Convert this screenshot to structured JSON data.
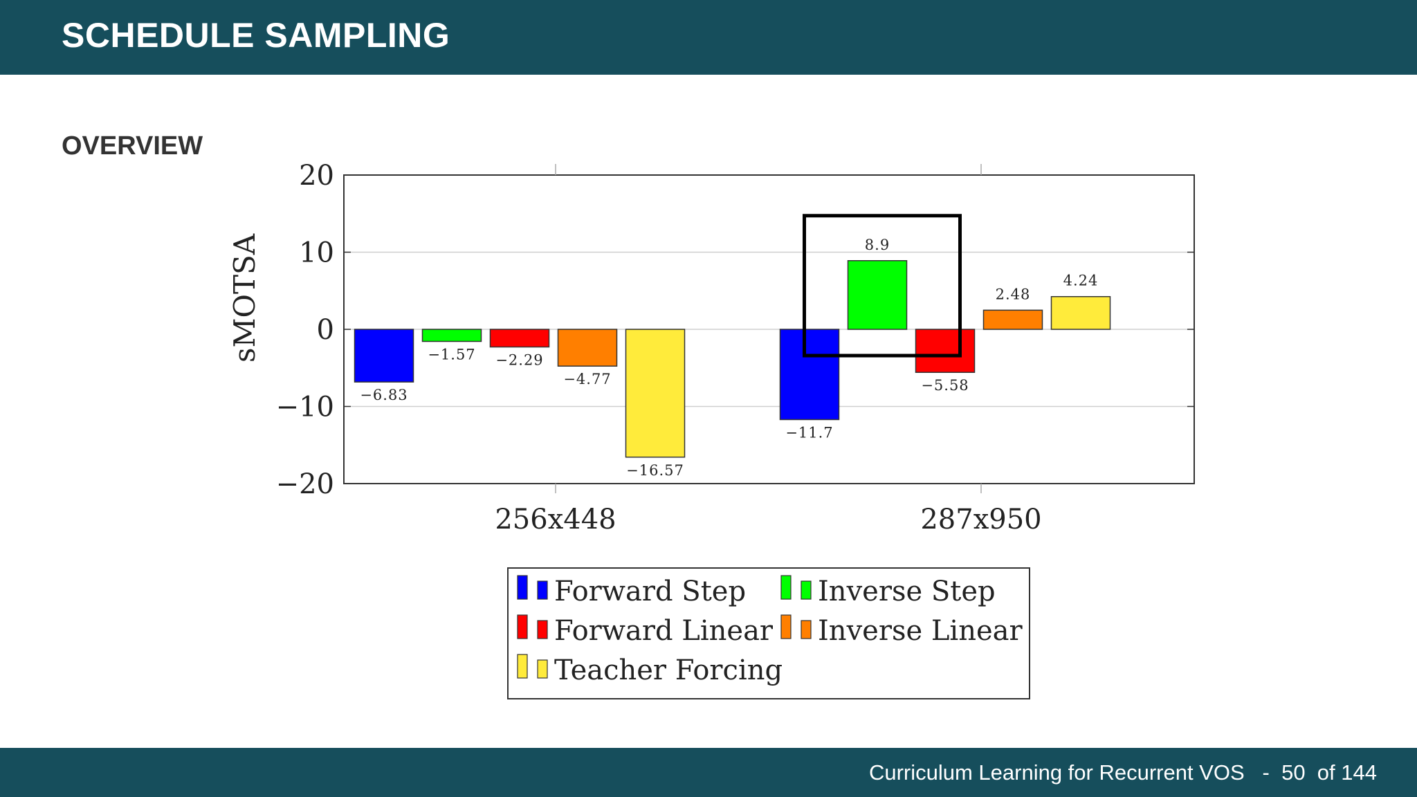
{
  "slide": {
    "title": "SCHEDULE SAMPLING",
    "section": "OVERVIEW",
    "footer": {
      "text": "Curriculum Learning for Recurrent VOS",
      "separator": "-",
      "page": "50",
      "of_label": "of 144"
    }
  },
  "colors": {
    "header_bg": "#164e5c",
    "forward_step": "#0000ff",
    "inverse_step": "#00ff00",
    "forward_linear": "#ff0000",
    "inverse_linear": "#ff7f00",
    "teacher_forcing": "#ffeb3b"
  },
  "chart_data": {
    "type": "bar",
    "title": "",
    "xlabel": "",
    "ylabel": "sMOTSA",
    "ylim": [
      -20,
      20
    ],
    "yticks": [
      20,
      10,
      0,
      -10,
      -20
    ],
    "ytick_labels": [
      "20",
      "10",
      "0",
      "−10",
      "−20"
    ],
    "grid": true,
    "legend_position": "bottom",
    "categories": [
      "256x448",
      "287x950"
    ],
    "series": [
      {
        "name": "Forward Step",
        "color": "#0000ff",
        "values": [
          -6.83,
          -11.7
        ],
        "labels": [
          "−6.83",
          "−11.7"
        ]
      },
      {
        "name": "Inverse Step",
        "color": "#00ff00",
        "values": [
          -1.57,
          8.9
        ],
        "labels": [
          "−1.57",
          "8.9"
        ]
      },
      {
        "name": "Forward Linear",
        "color": "#ff0000",
        "values": [
          -2.29,
          -5.58
        ],
        "labels": [
          "−2.29",
          "−5.58"
        ]
      },
      {
        "name": "Inverse Linear",
        "color": "#ff7f00",
        "values": [
          -4.77,
          2.48
        ],
        "labels": [
          "−4.77",
          "2.48"
        ]
      },
      {
        "name": "Teacher Forcing",
        "color": "#ffeb3b",
        "values": [
          -16.57,
          4.24
        ],
        "labels": [
          "−16.57",
          "4.24"
        ]
      }
    ],
    "annotations": [
      {
        "type": "highlight-box",
        "category": "287x950",
        "series": [
          "Inverse Step"
        ]
      }
    ]
  }
}
